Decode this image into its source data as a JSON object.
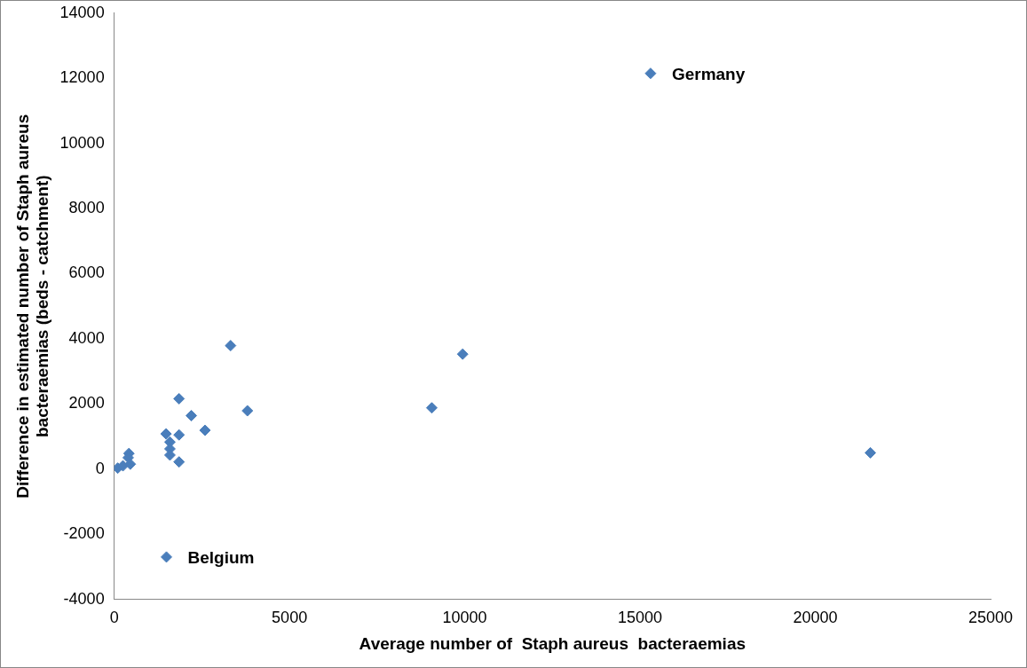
{
  "chart_data": {
    "type": "scatter",
    "xlabel": "Average number of  Staph aureus  bacteraemias",
    "ylabel": "Difference in estimated number of Staph aureus bacteraemias (beds - catchment)",
    "x": [
      100,
      250,
      350,
      420,
      400,
      460,
      1480,
      1590,
      1590,
      1590,
      1850,
      1850,
      1850,
      2200,
      2590,
      3320,
      3800,
      9060,
      9940,
      15300,
      21570,
      1490
    ],
    "values": [
      30,
      100,
      null,
      480,
      350,
      150,
      1080,
      830,
      620,
      430,
      2160,
      1050,
      220,
      1640,
      1190,
      3790,
      1790,
      1880,
      3530,
      12150,
      500,
      -2700
    ],
    "color": "#4a7ebb",
    "marker": "diamond",
    "xlim": [
      0,
      25000
    ],
    "xticks": [
      0,
      5000,
      10000,
      15000,
      20000,
      25000
    ],
    "ylim": [
      -4000,
      14000
    ],
    "yticks": [
      -4000,
      -2000,
      0,
      2000,
      4000,
      6000,
      8000,
      10000,
      12000,
      14000
    ],
    "grid": false,
    "legend": false,
    "annotations": [
      {
        "text": "Germany",
        "x": 15300,
        "y": 12150
      },
      {
        "text": "Belgium",
        "x": 1490,
        "y": -2700
      }
    ]
  }
}
